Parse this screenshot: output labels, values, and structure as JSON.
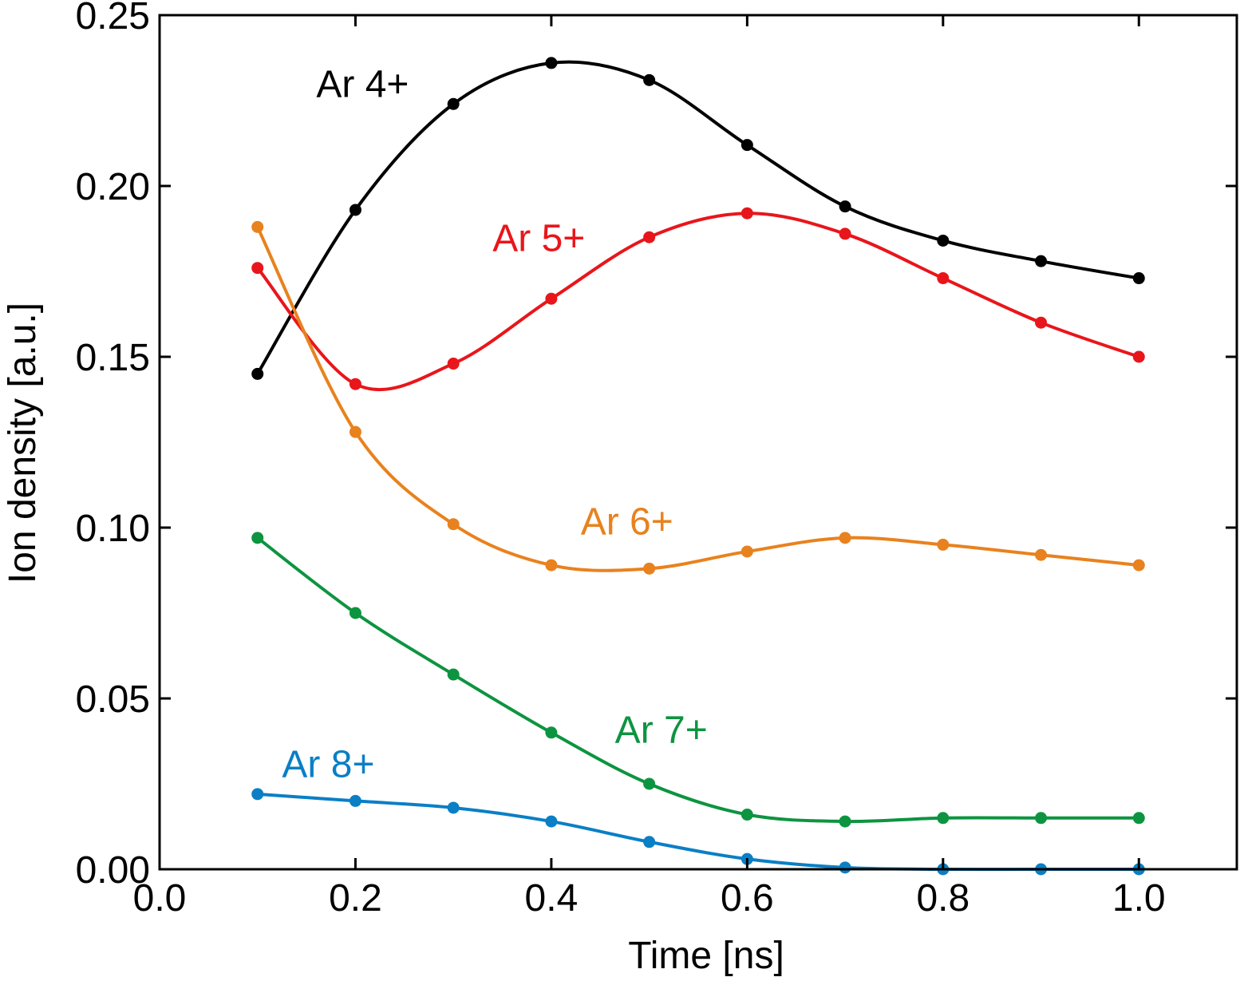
{
  "chart_data": {
    "type": "line",
    "title": "",
    "xlabel": "Time [ns]",
    "ylabel": "Ion density [a.u.]",
    "xlim": [
      0.0,
      1.1
    ],
    "ylim": [
      0.0,
      0.25
    ],
    "xticks": [
      "0.0",
      "0.2",
      "0.4",
      "0.6",
      "0.8",
      "1.0"
    ],
    "yticks": [
      "0.00",
      "0.05",
      "0.10",
      "0.15",
      "0.20",
      "0.25"
    ],
    "grid": false,
    "legend": "inline labels",
    "x": [
      0.1,
      0.2,
      0.3,
      0.4,
      0.5,
      0.6,
      0.7,
      0.8,
      0.9,
      1.0
    ],
    "series": [
      {
        "name": "Ar 4+",
        "color": "#000000",
        "values": [
          0.145,
          0.193,
          0.224,
          0.236,
          0.231,
          0.212,
          0.194,
          0.184,
          0.178,
          0.173
        ]
      },
      {
        "name": "Ar 5+",
        "color": "#e8161b",
        "values": [
          0.176,
          0.142,
          0.148,
          0.167,
          0.185,
          0.192,
          0.186,
          0.173,
          0.16,
          0.15
        ]
      },
      {
        "name": "Ar 6+",
        "color": "#e8821e",
        "values": [
          0.188,
          0.128,
          0.101,
          0.089,
          0.088,
          0.093,
          0.097,
          0.095,
          0.092,
          0.089
        ]
      },
      {
        "name": "Ar 7+",
        "color": "#0d9440",
        "values": [
          0.097,
          0.075,
          0.057,
          0.04,
          0.025,
          0.016,
          0.014,
          0.015,
          0.015,
          0.015
        ]
      },
      {
        "name": "Ar 8+",
        "color": "#0a7fc5",
        "values": [
          0.022,
          0.02,
          0.018,
          0.014,
          0.008,
          0.003,
          0.0005,
          0.0,
          0.0,
          0.0
        ]
      }
    ]
  }
}
